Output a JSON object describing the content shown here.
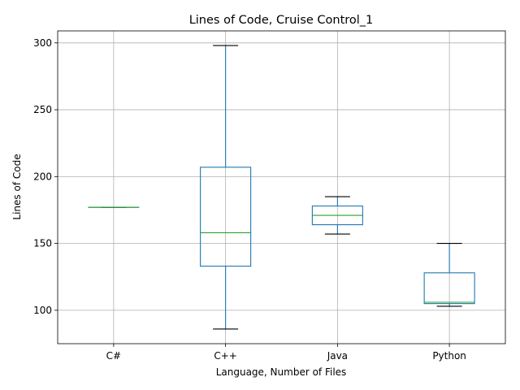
{
  "chart_data": {
    "type": "box",
    "title": "Lines of Code, Cruise Control_1",
    "xlabel": "Language, Number of Files",
    "ylabel": "Lines of Code",
    "ylim": [
      75,
      309
    ],
    "yticks": [
      100,
      150,
      200,
      250,
      300
    ],
    "grid": true,
    "categories": [
      "C#",
      "C++",
      "Java",
      "Python"
    ],
    "boxes": [
      {
        "label": "C#",
        "whisker_low": 177,
        "q1": 177,
        "median": 177,
        "q3": 177,
        "whisker_high": 177
      },
      {
        "label": "C++",
        "whisker_low": 86,
        "q1": 133,
        "median": 158,
        "q3": 207,
        "whisker_high": 298
      },
      {
        "label": "Java",
        "whisker_low": 157,
        "q1": 164,
        "median": 171,
        "q3": 178,
        "whisker_high": 185
      },
      {
        "label": "Python",
        "whisker_low": 103,
        "q1": 105,
        "median": 106,
        "q3": 128,
        "whisker_high": 150
      }
    ],
    "colors": {
      "box": "#1f77b4",
      "median": "#2ca02c",
      "cap": "#000000",
      "grid": "#b0b0b0"
    }
  }
}
